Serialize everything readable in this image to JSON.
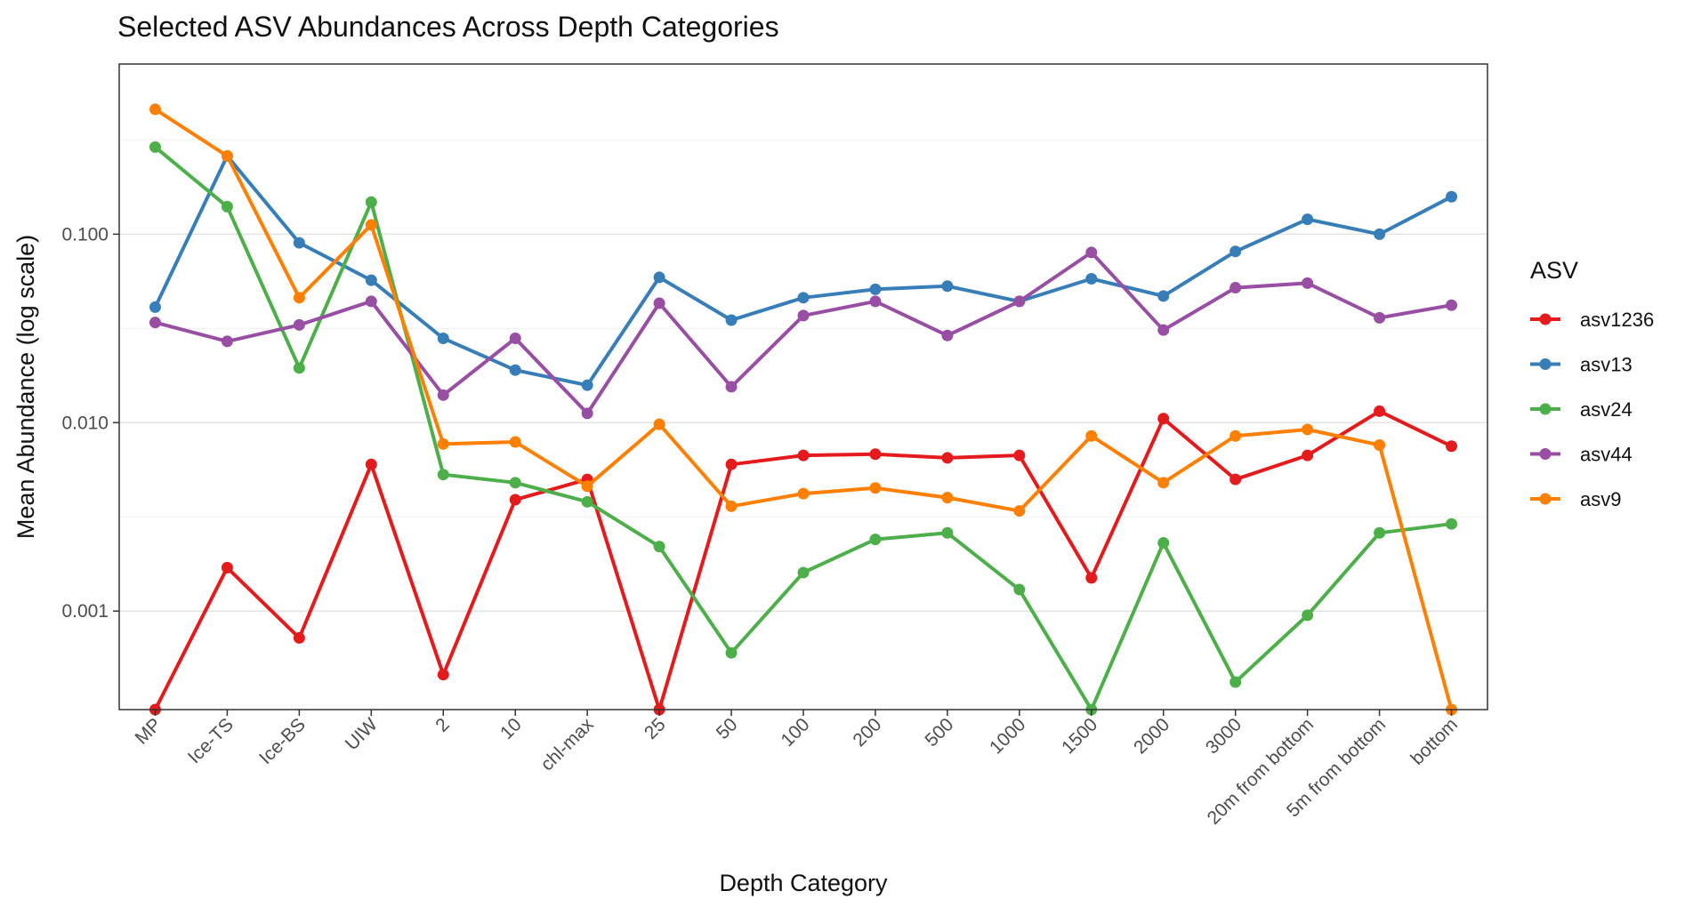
{
  "chart_data": {
    "type": "line",
    "title": "Selected ASV Abundances Across Depth Categories",
    "xlabel": "Depth Category",
    "ylabel": "Mean Abundance (log scale)",
    "y_scale": "log10",
    "ylim": [
      0.0003,
      0.8
    ],
    "yticks": [
      0.001,
      0.01,
      0.1
    ],
    "ytick_labels": [
      "0.001",
      "0.010",
      "0.100"
    ],
    "grid": true,
    "legend_title": "ASV",
    "legend_position": "right",
    "categories": [
      "MP",
      "Ice-TS",
      "Ice-BS",
      "UIW",
      "2",
      "10",
      "chl-max",
      "25",
      "50",
      "100",
      "200",
      "500",
      "1000",
      "1500",
      "2000",
      "3000",
      "20m from bottom",
      "5m from bottom",
      "bottom"
    ],
    "series": [
      {
        "name": "asv1236",
        "color": "#E41A1C",
        "values": [
          0.0003,
          0.0017,
          0.00072,
          0.006,
          0.00046,
          0.0039,
          0.005,
          0.0003,
          0.006,
          0.0067,
          0.0068,
          0.0065,
          0.0067,
          0.0015,
          0.0105,
          0.005,
          0.0067,
          0.0115,
          0.0075
        ]
      },
      {
        "name": "asv13",
        "color": "#377EB8",
        "values": [
          0.041,
          0.26,
          0.09,
          0.057,
          0.028,
          0.019,
          0.0158,
          0.059,
          0.035,
          0.046,
          0.051,
          0.053,
          0.044,
          0.058,
          0.047,
          0.081,
          0.12,
          0.1,
          0.158
        ]
      },
      {
        "name": "asv24",
        "color": "#4DAF4A",
        "values": [
          0.29,
          0.14,
          0.0195,
          0.148,
          0.0053,
          0.0048,
          0.0038,
          0.0022,
          0.0006,
          0.0016,
          0.0024,
          0.0026,
          0.0013,
          0.0003,
          0.0023,
          0.00042,
          0.00095,
          0.0026,
          0.0029
        ]
      },
      {
        "name": "asv44",
        "color": "#984EA3",
        "values": [
          0.034,
          0.027,
          0.033,
          0.044,
          0.014,
          0.028,
          0.0112,
          0.043,
          0.0155,
          0.037,
          0.044,
          0.029,
          0.044,
          0.08,
          0.031,
          0.052,
          0.055,
          0.036,
          0.042
        ]
      },
      {
        "name": "asv9",
        "color": "#FF7F00",
        "values": [
          0.46,
          0.26,
          0.046,
          0.112,
          0.0077,
          0.0079,
          0.0046,
          0.0098,
          0.0036,
          0.0042,
          0.0045,
          0.004,
          0.0034,
          0.0085,
          0.0048,
          0.0085,
          0.0092,
          0.0076,
          0.0003
        ]
      }
    ]
  }
}
